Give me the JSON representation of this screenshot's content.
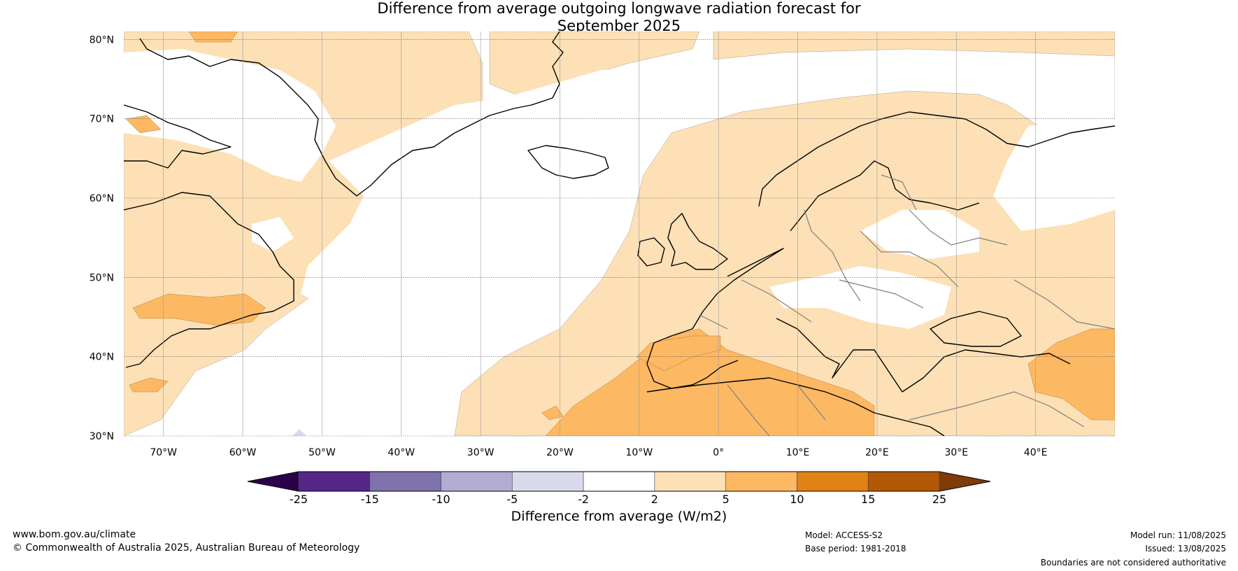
{
  "title": {
    "line1": "Difference from average outgoing longwave radiation forecast for",
    "line2": "September 2025"
  },
  "map": {
    "lon_range": [
      -75,
      50
    ],
    "lat_range": [
      30,
      81
    ],
    "lat_ticks": [
      {
        "value": 80,
        "label": "80°N"
      },
      {
        "value": 70,
        "label": "70°N"
      },
      {
        "value": 60,
        "label": "60°N"
      },
      {
        "value": 50,
        "label": "50°N"
      },
      {
        "value": 40,
        "label": "40°N"
      },
      {
        "value": 30,
        "label": "30°N"
      }
    ],
    "lon_ticks": [
      {
        "value": -70,
        "label": "70°W"
      },
      {
        "value": -60,
        "label": "60°W"
      },
      {
        "value": -50,
        "label": "50°W"
      },
      {
        "value": -40,
        "label": "40°W"
      },
      {
        "value": -30,
        "label": "30°W"
      },
      {
        "value": -20,
        "label": "20°W"
      },
      {
        "value": -10,
        "label": "10°W"
      },
      {
        "value": 0,
        "label": "0°"
      },
      {
        "value": 10,
        "label": "10°E"
      },
      {
        "value": 20,
        "label": "20°E"
      },
      {
        "value": 30,
        "label": "30°E"
      },
      {
        "value": 40,
        "label": "40°E"
      }
    ],
    "colors": {
      "anomaly_2_5": "#fde0b6",
      "anomaly_5_10": "#fdb863",
      "anomaly_neg2_neg5": "#d8daeb",
      "coast": "#000000",
      "border": "#7f7f7f",
      "grid": "#9a9a9a"
    }
  },
  "colorbar": {
    "boundaries": [
      "-25",
      "-15",
      "-10",
      "-5",
      "-2",
      "2",
      "5",
      "10",
      "15",
      "25"
    ],
    "colors": [
      "#542788",
      "#8073ac",
      "#b2abd2",
      "#d8daeb",
      "#ffffff",
      "#fee0b6",
      "#fdb863",
      "#e08214",
      "#b35806"
    ],
    "under_color": "#2d004b",
    "over_color": "#7f3b08",
    "label": "Difference from average (W/m2)"
  },
  "footer": {
    "website": "www.bom.gov.au/climate",
    "copyright": "© Commonwealth of Australia 2025, Australian Bureau of Meteorology",
    "model": "Model: ACCESS-S2",
    "base_period": "Base period: 1981-2018",
    "model_run": "Model run: 11/08/2025",
    "issued": "Issued: 13/08/2025",
    "disclaimer": "Boundaries are not considered authoritative"
  }
}
